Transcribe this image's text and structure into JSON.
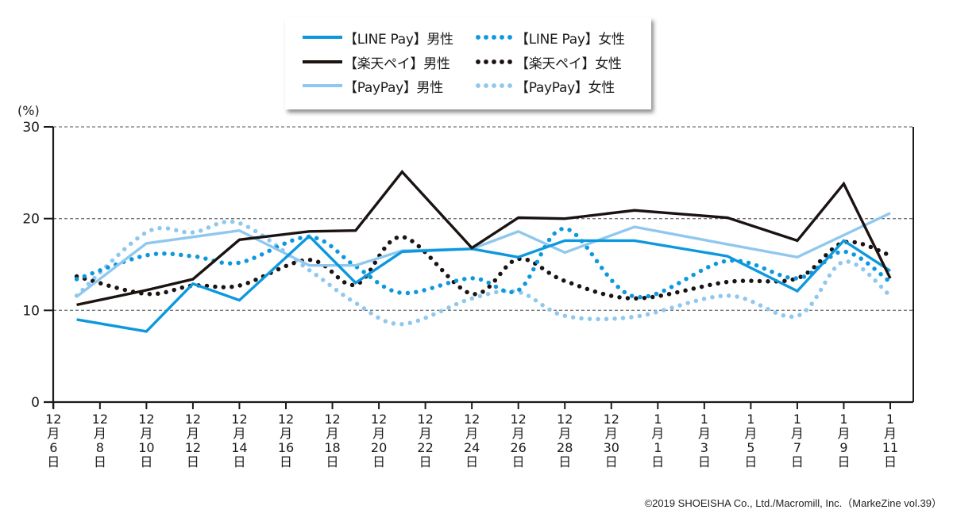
{
  "chart_data": {
    "type": "line",
    "title": "",
    "xlabel": "",
    "ylabel": "(%)",
    "ylim": [
      0,
      30
    ],
    "yticks": [
      "0",
      "10",
      "20",
      "30"
    ],
    "ytick_values": [
      0,
      10,
      20,
      30
    ],
    "grid": "horizontal dashed at 10, 20, 30",
    "xlim_days": [
      0,
      36
    ],
    "xticks": [
      {
        "day": 0,
        "month": "12",
        "unit_month": "月",
        "date": "6",
        "unit_day": "日"
      },
      {
        "day": 2,
        "month": "12",
        "unit_month": "月",
        "date": "8",
        "unit_day": "日"
      },
      {
        "day": 4,
        "month": "12",
        "unit_month": "月",
        "date": "10",
        "unit_day": "日"
      },
      {
        "day": 6,
        "month": "12",
        "unit_month": "月",
        "date": "12",
        "unit_day": "日"
      },
      {
        "day": 8,
        "month": "12",
        "unit_month": "月",
        "date": "14",
        "unit_day": "日"
      },
      {
        "day": 10,
        "month": "12",
        "unit_month": "月",
        "date": "16",
        "unit_day": "日"
      },
      {
        "day": 12,
        "month": "12",
        "unit_month": "月",
        "date": "18",
        "unit_day": "日"
      },
      {
        "day": 14,
        "month": "12",
        "unit_month": "月",
        "date": "20",
        "unit_day": "日"
      },
      {
        "day": 16,
        "month": "12",
        "unit_month": "月",
        "date": "22",
        "unit_day": "日"
      },
      {
        "day": 18,
        "month": "12",
        "unit_month": "月",
        "date": "24",
        "unit_day": "日"
      },
      {
        "day": 20,
        "month": "12",
        "unit_month": "月",
        "date": "26",
        "unit_day": "日"
      },
      {
        "day": 22,
        "month": "12",
        "unit_month": "月",
        "date": "28",
        "unit_day": "日"
      },
      {
        "day": 24,
        "month": "12",
        "unit_month": "月",
        "date": "30",
        "unit_day": "日"
      },
      {
        "day": 26,
        "month": "1",
        "unit_month": "月",
        "date": "1",
        "unit_day": "日"
      },
      {
        "day": 28,
        "month": "1",
        "unit_month": "月",
        "date": "3",
        "unit_day": "日"
      },
      {
        "day": 30,
        "month": "1",
        "unit_month": "月",
        "date": "5",
        "unit_day": "日"
      },
      {
        "day": 32,
        "month": "1",
        "unit_month": "月",
        "date": "7",
        "unit_day": "日"
      },
      {
        "day": 34,
        "month": "1",
        "unit_month": "月",
        "date": "9",
        "unit_day": "日"
      },
      {
        "day": 36,
        "month": "1",
        "unit_month": "月",
        "date": "11",
        "unit_day": "日"
      }
    ],
    "x_days": [
      1,
      4,
      6,
      8,
      11,
      13,
      15,
      18,
      20,
      22,
      25,
      29,
      32,
      34,
      36
    ],
    "legend_position": "top-center",
    "series": [
      {
        "name": "【LINE Pay】男性",
        "color": "#0d98de",
        "style": "solid",
        "values": [
          9.0,
          7.7,
          12.9,
          11.1,
          18.1,
          13.0,
          16.4,
          16.7,
          15.8,
          17.6,
          17.6,
          15.9,
          12.1,
          17.6,
          14.3
        ]
      },
      {
        "name": "【楽天ペイ】男性",
        "color": "#1a1311",
        "style": "solid",
        "values": [
          10.6,
          12.2,
          13.4,
          17.7,
          18.6,
          18.7,
          25.1,
          16.8,
          20.1,
          20.0,
          20.9,
          20.1,
          17.6,
          23.8,
          13.5
        ]
      },
      {
        "name": "【PayPay】男性",
        "color": "#8fc8ef",
        "style": "solid",
        "values": [
          11.5,
          17.3,
          18.0,
          18.7,
          14.9,
          14.9,
          16.5,
          16.7,
          18.6,
          16.3,
          19.1,
          17.2,
          15.8,
          18.2,
          20.6
        ]
      },
      {
        "name": "【LINE Pay】女性",
        "color": "#0d98de",
        "style": "dotted",
        "values": [
          13.4,
          16.0,
          15.9,
          15.2,
          18.0,
          14.8,
          11.9,
          13.5,
          12.2,
          18.9,
          11.5,
          15.4,
          13.5,
          16.4,
          13.1
        ]
      },
      {
        "name": "【楽天ペイ】女性",
        "color": "#1a1311",
        "style": "dotted",
        "values": [
          13.7,
          11.8,
          12.7,
          12.7,
          15.5,
          12.8,
          18.0,
          11.8,
          15.6,
          13.2,
          11.3,
          13.1,
          13.5,
          17.4,
          16.0
        ]
      },
      {
        "name": "【PayPay】女性",
        "color": "#8fc8ef",
        "style": "dotted",
        "values": [
          11.6,
          18.5,
          18.5,
          19.5,
          14.4,
          10.8,
          8.5,
          11.3,
          12.0,
          9.4,
          9.3,
          11.6,
          9.4,
          15.3,
          11.6
        ]
      }
    ]
  },
  "legend": {
    "items": [
      {
        "label": "【LINE Pay】男性",
        "color": "#0d98de",
        "style": "solid"
      },
      {
        "label": "【楽天ペイ】男性",
        "color": "#1a1311",
        "style": "solid"
      },
      {
        "label": "【PayPay】男性",
        "color": "#8fc8ef",
        "style": "solid"
      },
      {
        "label": "【LINE Pay】女性",
        "color": "#0d98de",
        "style": "dotted"
      },
      {
        "label": "【楽天ペイ】女性",
        "color": "#1a1311",
        "style": "dotted"
      },
      {
        "label": "【PayPay】女性",
        "color": "#8fc8ef",
        "style": "dotted"
      }
    ]
  },
  "footer": {
    "copyright": "©2019 SHOEISHA Co., Ltd./Macromill, Inc.（MarkeZine vol.39）"
  }
}
